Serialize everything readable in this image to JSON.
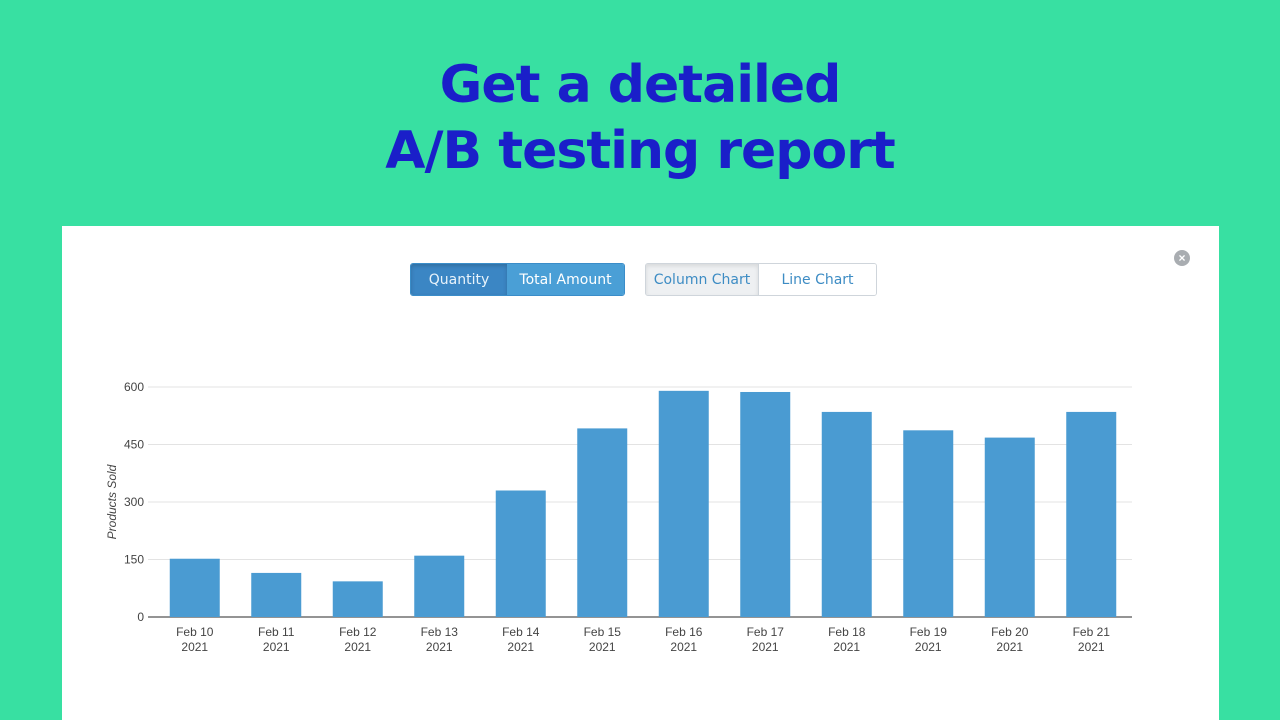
{
  "headline": {
    "line1": "Get a detailed",
    "line2": "A/B testing report"
  },
  "colors": {
    "background": "#38e0a2",
    "headline": "#1a1fc9",
    "bar": "#4a9bd2",
    "grid": "#e3e3e3"
  },
  "controls": {
    "metric_buttons": [
      "Quantity",
      "Total Amount"
    ],
    "metric_selected": "Quantity",
    "chart_type_buttons": [
      "Column Chart",
      "Line Chart"
    ],
    "chart_type_selected": "Column Chart",
    "close_icon": "close-circle-icon"
  },
  "chart_data": {
    "type": "bar",
    "categories": [
      "Feb 10\n2021",
      "Feb 11\n2021",
      "Feb 12\n2021",
      "Feb 13\n2021",
      "Feb 14\n2021",
      "Feb 15\n2021",
      "Feb 16\n2021",
      "Feb 17\n2021",
      "Feb 18\n2021",
      "Feb 19\n2021",
      "Feb 20\n2021",
      "Feb 21\n2021"
    ],
    "values": [
      152,
      115,
      93,
      160,
      330,
      492,
      590,
      587,
      535,
      487,
      468,
      535
    ],
    "ylabel": "Products Sold",
    "ylim": [
      0,
      600
    ],
    "yticks": [
      0,
      150,
      300,
      450,
      600
    ],
    "grid": true
  }
}
